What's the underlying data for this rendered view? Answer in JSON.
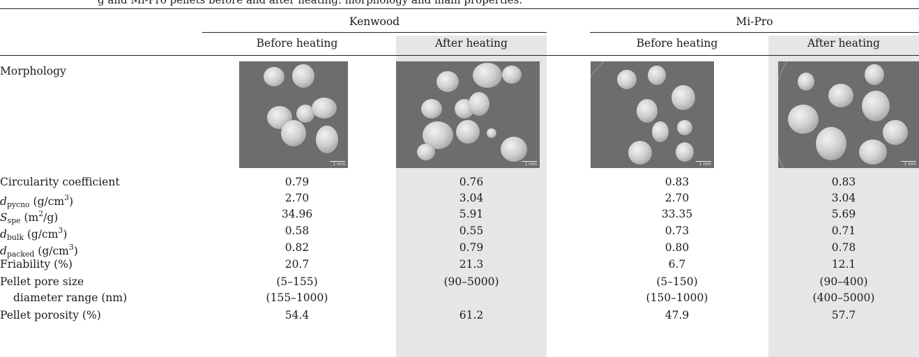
{
  "caption_fragment": "g and Mi-Pro pellets before and after heating: morphology and main properties.",
  "header": {
    "group_kenwood": "Kenwood",
    "group_mipro": "Mi-Pro",
    "before": "Before heating",
    "after": "After heating"
  },
  "rows": {
    "morphology": "Morphology",
    "circularity": "Circularity coefficient",
    "d_pycno_sym": "d",
    "d_pycno_sub": "pycno",
    "d_pycno_unit": "(g/cm",
    "d_pycno_sup": "3",
    "d_pycno_close": ")",
    "s_spe_sym": "S",
    "s_spe_sub": "spe",
    "s_spe_unit": "(m",
    "s_spe_sup": "2",
    "s_spe_close": "/g)",
    "d_bulk_sym": "d",
    "d_bulk_sub": "bulk",
    "d_bulk_unit": "(g/cm",
    "d_bulk_sup": "3",
    "d_bulk_close": ")",
    "d_packed_sym": "d",
    "d_packed_sub": "packed",
    "d_packed_unit": "(g/cm",
    "d_packed_sup": "3",
    "d_packed_close": ")",
    "friability": "Friability (%)",
    "pore_line1": "Pellet pore size",
    "pore_line2": "diameter range (nm)",
    "porosity": "Pellet porosity (%)"
  },
  "images": {
    "scale_label": "1 mm"
  },
  "values": {
    "circularity": [
      "0.79",
      "0.76",
      "0.83",
      "0.83"
    ],
    "d_pycno": [
      "2.70",
      "3.04",
      "2.70",
      "3.04"
    ],
    "s_spe": [
      "34.96",
      "5.91",
      "33.35",
      "5.69"
    ],
    "d_bulk": [
      "0.58",
      "0.55",
      "0.73",
      "0.71"
    ],
    "d_packed": [
      "0.82",
      "0.79",
      "0.80",
      "0.78"
    ],
    "friability": [
      "20.7",
      "21.3",
      "6.7",
      "12.1"
    ],
    "pore_line1": [
      "(5–155)",
      "(90–5000)",
      "(5–150)",
      "(90–400)"
    ],
    "pore_line2": [
      "(155–1000)",
      "",
      "(150–1000)",
      "(400–5000)"
    ],
    "porosity": [
      "54.4",
      "61.2",
      "47.9",
      "57.7"
    ]
  }
}
